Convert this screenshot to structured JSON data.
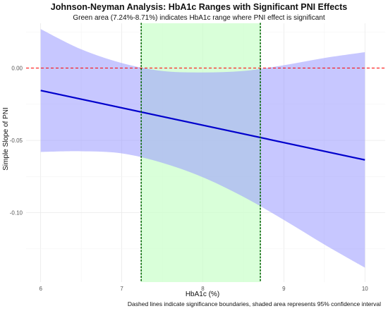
{
  "chart_data": {
    "type": "line",
    "title": "Johnson-Neyman Analysis: HbA1c Ranges with Significant PNI Effects",
    "subtitle": "Green area (7.24%-8.71%) indicates HbA1c range where PNI effect is significant",
    "xlabel": "HbA1c (%)",
    "ylabel": "Simple Slope of PNI",
    "caption": "Dashed lines indicate significance boundaries, shaded area represents 95% confidence interval",
    "xlim": [
      5.82,
      10.25
    ],
    "ylim": [
      -0.148,
      0.031
    ],
    "x_ticks": [
      6,
      7,
      8,
      9,
      10
    ],
    "x_tick_labels": [
      "6",
      "7",
      "8",
      "9",
      "10"
    ],
    "y_ticks": [
      0.0,
      -0.05,
      -0.1
    ],
    "y_tick_labels": [
      "0.00",
      "-0.05",
      "-0.10"
    ],
    "grid": true,
    "series": [
      {
        "kind": "line",
        "x": [
          6,
          10
        ],
        "y": [
          -0.0155,
          -0.0635
        ],
        "color": "#0000cc"
      },
      {
        "kind": "ribbon",
        "x": [
          6.0,
          6.5,
          7.0,
          7.5,
          8.0,
          8.5,
          9.0,
          9.5,
          10.0
        ],
        "upper": [
          0.027,
          0.013,
          0.0035,
          -0.002,
          -0.003,
          -0.002,
          0.002,
          0.007,
          0.011
        ],
        "lower": [
          -0.058,
          -0.0575,
          -0.059,
          -0.0655,
          -0.0755,
          -0.089,
          -0.105,
          -0.122,
          -0.138
        ],
        "color": "#9999ff"
      }
    ],
    "significance_region": {
      "x_start": 7.24,
      "x_end": 8.71,
      "color": "#ccffcc"
    },
    "reference_line": {
      "y": 0,
      "color": "#ff0000",
      "style": "dashed"
    },
    "boundary_lines": {
      "x": [
        7.24,
        8.71
      ],
      "color": "#006400",
      "style": "dotted"
    }
  }
}
